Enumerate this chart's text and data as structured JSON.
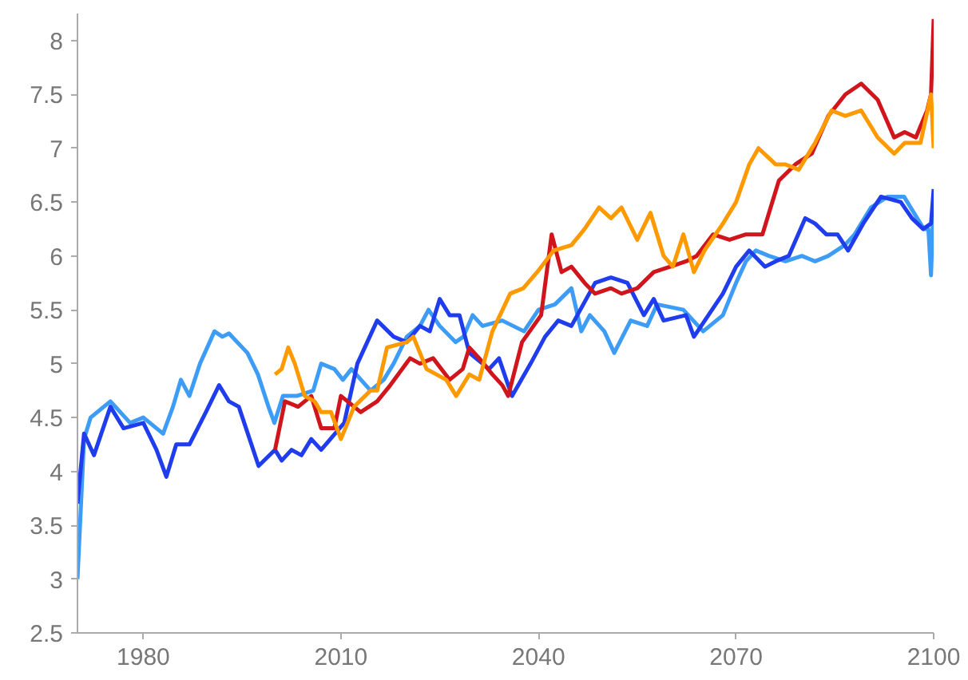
{
  "chart_data": {
    "type": "line",
    "xlim": [
      1970,
      2100
    ],
    "ylim": [
      2.5,
      8.25
    ],
    "xticks": [
      1980,
      2010,
      2040,
      2070,
      2100
    ],
    "yticks": [
      2.5,
      3,
      3.5,
      4,
      4.5,
      5,
      5.5,
      6,
      6.5,
      7,
      7.5,
      8
    ],
    "line_style": "solid",
    "series": [
      {
        "color": "#3d9cf5",
        "x": [
          1970,
          1971,
          1972,
          1975,
          1978,
          1980,
          1983,
          1984.5,
          1985.7,
          1987,
          1988.6,
          1990.8,
          1992,
          1993,
          1995.8,
          1997.4,
          1999,
          1999.9,
          2001.2,
          2003.3,
          2005.8,
          2007,
          2009,
          2010.3,
          2011.6,
          2014.5,
          2016.5,
          2018,
          2020,
          2022,
          2023.3,
          2025,
          2027.4,
          2028.6,
          2030,
          2031.5,
          2034.5,
          2037.8,
          2040,
          2042.5,
          2045,
          2046.5,
          2047.8,
          2050,
          2051.5,
          2054,
          2056.5,
          2058,
          2062,
          2065,
          2068,
          2070,
          2071.5,
          2073,
          2075,
          2077.5,
          2080,
          2082,
          2084,
          2086.5,
          2088,
          2090.5,
          2093,
          2095.5,
          2097,
          2098.5,
          2099.2,
          2099.6,
          2100
        ],
        "values": [
          3.0,
          4.3,
          4.5,
          4.65,
          4.45,
          4.5,
          4.35,
          4.6,
          4.85,
          4.7,
          5.0,
          5.3,
          5.25,
          5.28,
          5.1,
          4.9,
          4.6,
          4.45,
          4.7,
          4.7,
          4.75,
          5.0,
          4.95,
          4.85,
          4.95,
          4.75,
          4.85,
          5.0,
          5.25,
          5.35,
          5.5,
          5.35,
          5.2,
          5.25,
          5.45,
          5.35,
          5.4,
          5.3,
          5.5,
          5.55,
          5.7,
          5.3,
          5.45,
          5.3,
          5.1,
          5.4,
          5.35,
          5.55,
          5.5,
          5.3,
          5.45,
          5.75,
          5.95,
          6.05,
          6.0,
          5.95,
          6.0,
          5.95,
          6.0,
          6.1,
          6.2,
          6.45,
          6.55,
          6.55,
          6.4,
          6.25,
          6.25,
          5.82,
          6.55
        ]
      },
      {
        "color": "#1f3ded",
        "x": [
          1970,
          1971,
          1972.5,
          1975,
          1977,
          1980,
          1982,
          1983.5,
          1985,
          1987,
          1989.5,
          1991.5,
          1993,
          1994.5,
          1997.5,
          2000,
          2001,
          2002.5,
          2004,
          2005.5,
          2007,
          2010.5,
          2012.5,
          2015.5,
          2018,
          2020,
          2022,
          2023.5,
          2025,
          2026.5,
          2028,
          2029.5,
          2032.5,
          2034,
          2035.4,
          2036,
          2038.8,
          2041,
          2043,
          2045,
          2048.6,
          2051,
          2053.5,
          2056,
          2057.5,
          2059,
          2062.4,
          2063.6,
          2065.8,
          2068,
          2070,
          2072,
          2074.4,
          2076,
          2078,
          2080.5,
          2082,
          2083.7,
          2085.4,
          2087,
          2089.3,
          2092,
          2095,
          2096.7,
          2098.4,
          2099.6,
          2100
        ],
        "values": [
          3.7,
          4.35,
          4.15,
          4.6,
          4.4,
          4.45,
          4.2,
          3.95,
          4.25,
          4.25,
          4.55,
          4.8,
          4.65,
          4.6,
          4.05,
          4.2,
          4.1,
          4.2,
          4.15,
          4.3,
          4.2,
          4.45,
          5.0,
          5.4,
          5.25,
          5.2,
          5.35,
          5.3,
          5.6,
          5.45,
          5.45,
          5.1,
          4.95,
          5.05,
          4.8,
          4.7,
          5.0,
          5.25,
          5.4,
          5.35,
          5.75,
          5.8,
          5.75,
          5.45,
          5.6,
          5.4,
          5.45,
          5.25,
          5.45,
          5.65,
          5.9,
          6.05,
          5.9,
          5.95,
          6.0,
          6.35,
          6.3,
          6.2,
          6.2,
          6.05,
          6.3,
          6.55,
          6.5,
          6.35,
          6.25,
          6.3,
          6.62
        ]
      },
      {
        "color": "#d0161c",
        "x": [
          2000,
          2001.5,
          2003.5,
          2005.5,
          2007,
          2009,
          2010,
          2013,
          2015.5,
          2017.5,
          2020.5,
          2022,
          2024,
          2026.5,
          2028.5,
          2029.5,
          2031,
          2033,
          2034.5,
          2035.4,
          2037.5,
          2040.4,
          2042,
          2043.5,
          2045,
          2047,
          2048.6,
          2051,
          2052.6,
          2055,
          2057.5,
          2060,
          2062.4,
          2064,
          2066.5,
          2069,
          2071.5,
          2074,
          2076.5,
          2079,
          2081.5,
          2084,
          2086.6,
          2089,
          2091.5,
          2094,
          2095.6,
          2097.3,
          2099,
          2099.6,
          2100
        ],
        "values": [
          4.2,
          4.65,
          4.6,
          4.7,
          4.4,
          4.4,
          4.7,
          4.55,
          4.65,
          4.8,
          5.05,
          5.0,
          5.05,
          4.85,
          4.95,
          5.15,
          5.05,
          4.9,
          4.8,
          4.7,
          5.2,
          5.45,
          6.2,
          5.85,
          5.9,
          5.75,
          5.65,
          5.7,
          5.65,
          5.7,
          5.85,
          5.9,
          5.95,
          6.0,
          6.2,
          6.15,
          6.2,
          6.2,
          6.7,
          6.85,
          6.95,
          7.3,
          7.5,
          7.6,
          7.45,
          7.1,
          7.15,
          7.1,
          7.35,
          7.5,
          8.2
        ]
      },
      {
        "color": "#ff9900",
        "x": [
          2000,
          2001,
          2002,
          2003,
          2004.5,
          2006,
          2007,
          2008.5,
          2010,
          2012,
          2014.5,
          2015.5,
          2017,
          2020,
          2021,
          2023,
          2026,
          2027.5,
          2029.5,
          2031,
          2033,
          2035.7,
          2037.7,
          2039.8,
          2042.3,
          2045,
          2047,
          2049.2,
          2051,
          2052.6,
          2055,
          2057,
          2059,
          2060.4,
          2062,
          2063.6,
          2065.2,
          2068,
          2070,
          2072,
          2073.4,
          2076,
          2077.5,
          2079.5,
          2082,
          2084.5,
          2086.6,
          2089,
          2091.5,
          2094,
          2095.6,
          2098,
          2099.6,
          2100
        ],
        "values": [
          4.9,
          4.95,
          5.15,
          5.0,
          4.7,
          4.65,
          4.55,
          4.55,
          4.3,
          4.6,
          4.75,
          4.75,
          5.15,
          5.2,
          5.25,
          4.95,
          4.85,
          4.7,
          4.9,
          4.85,
          5.3,
          5.65,
          5.7,
          5.85,
          6.05,
          6.1,
          6.25,
          6.45,
          6.35,
          6.45,
          6.15,
          6.4,
          6.0,
          5.9,
          6.2,
          5.85,
          6.05,
          6.3,
          6.5,
          6.85,
          7.0,
          6.85,
          6.85,
          6.8,
          7.05,
          7.35,
          7.3,
          7.35,
          7.1,
          6.95,
          7.05,
          7.05,
          7.5,
          7.0
        ]
      }
    ]
  }
}
